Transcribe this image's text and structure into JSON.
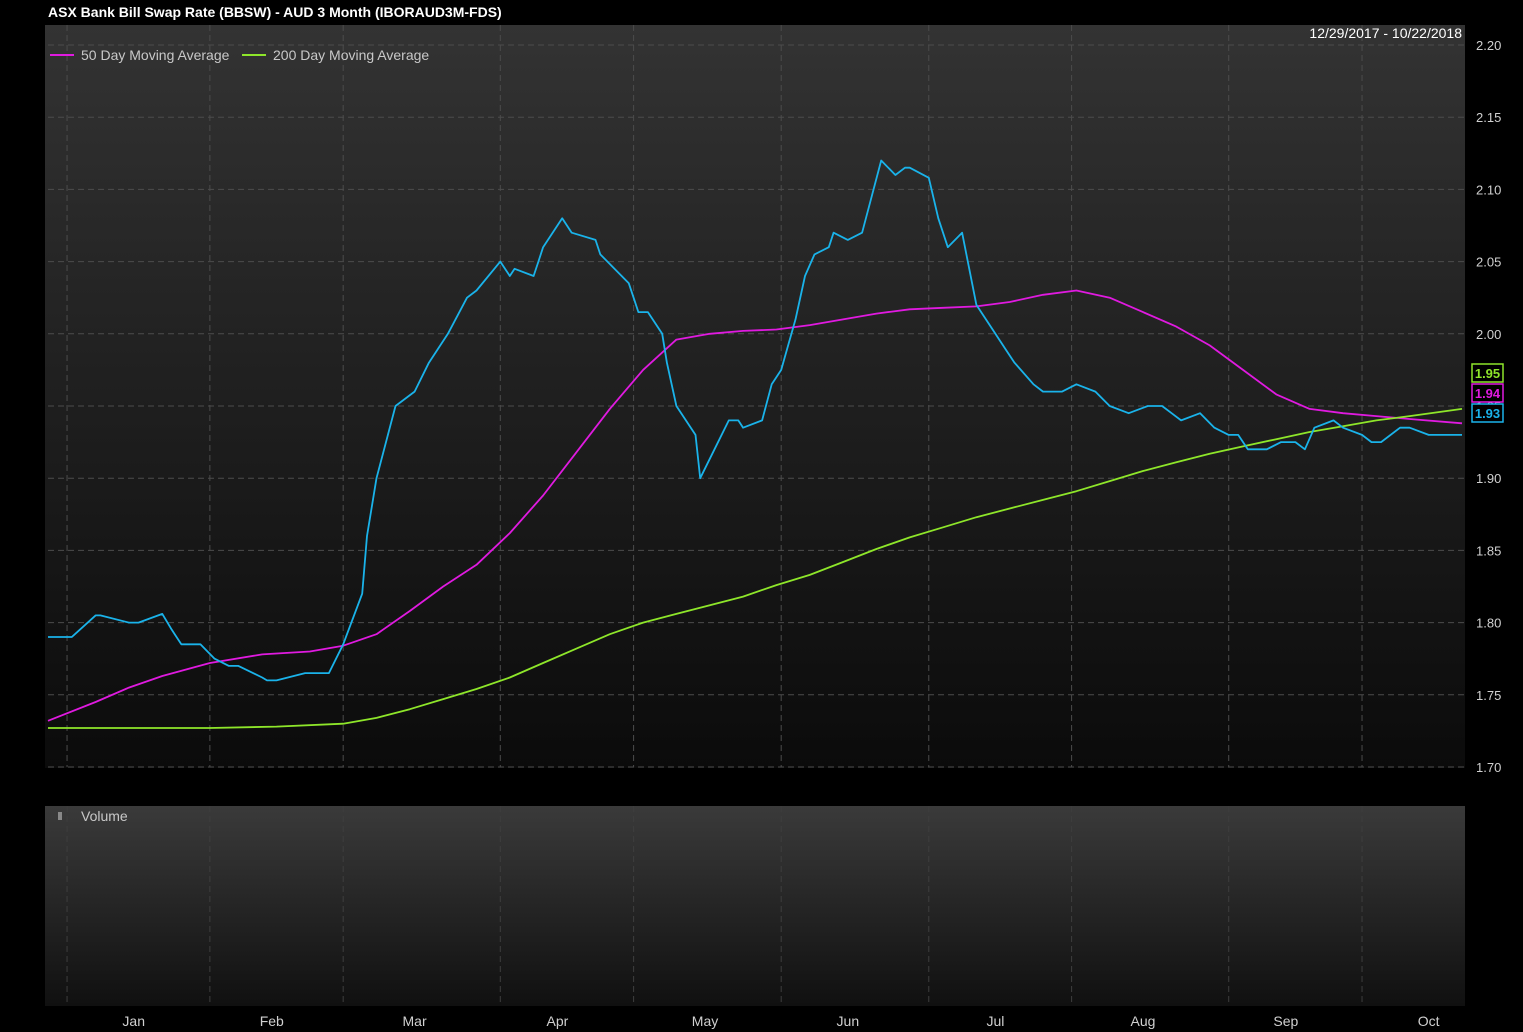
{
  "chart_data": {
    "type": "line",
    "title": "ASX Bank Bill Swap Rate (BBSW) - AUD 3 Month (IBORAUD3M-FDS)",
    "date_range": "12/29/2017 - 10/22/2018",
    "x_labels": [
      "Jan",
      "Feb",
      "Mar",
      "Apr",
      "May",
      "Jun",
      "Jul",
      "Aug",
      "Sep",
      "Oct"
    ],
    "ylim": [
      1.7,
      2.2
    ],
    "y_ticks": [
      "1.70",
      "1.75",
      "1.80",
      "1.85",
      "1.90",
      "1.95",
      "2.00",
      "2.05",
      "2.10",
      "2.15",
      "2.20"
    ],
    "grid": true,
    "legend_position": "top-left",
    "volume_label": "Volume",
    "series": [
      {
        "name": "",
        "color": "#1ab3ea",
        "last_label": "1.93",
        "x": [
          "2017-12-29",
          "2018-01-03",
          "2018-01-08",
          "2018-01-09",
          "2018-01-15",
          "2018-01-17",
          "2018-01-22",
          "2018-01-24",
          "2018-01-26",
          "2018-01-30",
          "2018-02-02",
          "2018-02-05",
          "2018-02-07",
          "2018-02-12",
          "2018-02-13",
          "2018-02-15",
          "2018-02-21",
          "2018-02-22",
          "2018-02-26",
          "2018-03-01",
          "2018-03-05",
          "2018-03-06",
          "2018-03-08",
          "2018-03-12",
          "2018-03-16",
          "2018-03-19",
          "2018-03-23",
          "2018-03-27",
          "2018-03-29",
          "2018-04-03",
          "2018-04-05",
          "2018-04-06",
          "2018-04-10",
          "2018-04-11",
          "2018-04-12",
          "2018-04-16",
          "2018-04-18",
          "2018-04-23",
          "2018-04-24",
          "2018-04-30",
          "2018-05-02",
          "2018-05-04",
          "2018-05-07",
          "2018-05-08",
          "2018-05-10",
          "2018-05-14",
          "2018-05-15",
          "2018-05-18",
          "2018-05-21",
          "2018-05-23",
          "2018-05-24",
          "2018-05-28",
          "2018-05-30",
          "2018-06-01",
          "2018-06-04",
          "2018-06-06",
          "2018-06-08",
          "2018-06-11",
          "2018-06-12",
          "2018-06-15",
          "2018-06-18",
          "2018-06-22",
          "2018-06-25",
          "2018-06-27",
          "2018-06-28",
          "2018-07-02",
          "2018-07-04",
          "2018-07-06",
          "2018-07-09",
          "2018-07-12",
          "2018-07-16",
          "2018-07-18",
          "2018-07-20",
          "2018-07-24",
          "2018-07-26",
          "2018-07-30",
          "2018-08-02",
          "2018-08-06",
          "2018-08-09",
          "2018-08-13",
          "2018-08-17",
          "2018-08-20",
          "2018-08-22",
          "2018-08-24",
          "2018-08-28",
          "2018-08-31",
          "2018-09-03",
          "2018-09-05",
          "2018-09-07",
          "2018-09-11",
          "2018-09-14",
          "2018-09-17",
          "2018-09-19",
          "2018-09-21",
          "2018-09-25",
          "2018-09-27",
          "2018-10-01",
          "2018-10-03",
          "2018-10-05",
          "2018-10-09",
          "2018-10-11",
          "2018-10-15",
          "2018-10-18",
          "2018-10-22"
        ],
        "values": [
          1.79,
          1.79,
          1.805,
          1.805,
          1.8,
          1.8,
          1.806,
          1.795,
          1.785,
          1.785,
          1.775,
          1.77,
          1.77,
          1.762,
          1.76,
          1.76,
          1.765,
          1.765,
          1.765,
          1.785,
          1.82,
          1.86,
          1.9,
          1.95,
          1.96,
          1.98,
          2.0,
          2.025,
          2.03,
          2.05,
          2.04,
          2.045,
          2.04,
          2.05,
          2.06,
          2.08,
          2.07,
          2.065,
          2.055,
          2.035,
          2.015,
          2.015,
          2.0,
          1.98,
          1.95,
          1.93,
          1.9,
          1.92,
          1.94,
          1.94,
          1.935,
          1.94,
          1.965,
          1.975,
          2.01,
          2.04,
          2.055,
          2.06,
          2.07,
          2.065,
          2.07,
          2.12,
          2.11,
          2.115,
          2.115,
          2.108,
          2.08,
          2.06,
          2.07,
          2.02,
          2.0,
          1.99,
          1.98,
          1.965,
          1.96,
          1.96,
          1.965,
          1.96,
          1.95,
          1.945,
          1.95,
          1.95,
          1.945,
          1.94,
          1.945,
          1.935,
          1.93,
          1.93,
          1.92,
          1.92,
          1.925,
          1.925,
          1.92,
          1.935,
          1.94,
          1.935,
          1.93,
          1.925,
          1.925,
          1.935,
          1.935,
          1.93,
          1.93,
          1.93
        ]
      },
      {
        "name": "50 Day Moving Average",
        "color": "#e01ae0",
        "last_label": "1.94",
        "x": [
          "2017-12-29",
          "2018-01-08",
          "2018-01-15",
          "2018-01-22",
          "2018-02-01",
          "2018-02-12",
          "2018-02-22",
          "2018-03-01",
          "2018-03-08",
          "2018-03-15",
          "2018-03-22",
          "2018-03-29",
          "2018-04-05",
          "2018-04-12",
          "2018-04-19",
          "2018-04-26",
          "2018-05-03",
          "2018-05-10",
          "2018-05-17",
          "2018-05-24",
          "2018-05-31",
          "2018-06-07",
          "2018-06-14",
          "2018-06-21",
          "2018-06-28",
          "2018-07-05",
          "2018-07-12",
          "2018-07-19",
          "2018-07-26",
          "2018-08-02",
          "2018-08-09",
          "2018-08-16",
          "2018-08-23",
          "2018-08-30",
          "2018-09-06",
          "2018-09-13",
          "2018-09-20",
          "2018-09-27",
          "2018-10-04",
          "2018-10-11",
          "2018-10-22"
        ],
        "values": [
          1.732,
          1.745,
          1.755,
          1.763,
          1.772,
          1.778,
          1.78,
          1.784,
          1.792,
          1.808,
          1.825,
          1.84,
          1.862,
          1.888,
          1.918,
          1.948,
          1.975,
          1.996,
          2.0,
          2.002,
          2.003,
          2.006,
          2.01,
          2.014,
          2.017,
          2.018,
          2.019,
          2.022,
          2.027,
          2.03,
          2.025,
          2.015,
          2.005,
          1.992,
          1.975,
          1.958,
          1.948,
          1.945,
          1.943,
          1.941,
          1.938
        ]
      },
      {
        "name": "200 Day Moving Average",
        "color": "#8ee62a",
        "last_label": "1.95",
        "x": [
          "2017-12-29",
          "2018-01-15",
          "2018-02-01",
          "2018-02-15",
          "2018-03-01",
          "2018-03-08",
          "2018-03-15",
          "2018-03-22",
          "2018-03-29",
          "2018-04-05",
          "2018-04-12",
          "2018-04-19",
          "2018-04-26",
          "2018-05-03",
          "2018-05-10",
          "2018-05-17",
          "2018-05-24",
          "2018-05-31",
          "2018-06-07",
          "2018-06-14",
          "2018-06-21",
          "2018-06-28",
          "2018-07-05",
          "2018-07-12",
          "2018-07-19",
          "2018-07-26",
          "2018-08-02",
          "2018-08-09",
          "2018-08-16",
          "2018-08-23",
          "2018-08-30",
          "2018-09-06",
          "2018-09-13",
          "2018-09-20",
          "2018-09-27",
          "2018-10-04",
          "2018-10-11",
          "2018-10-22"
        ],
        "values": [
          1.727,
          1.727,
          1.727,
          1.728,
          1.73,
          1.734,
          1.74,
          1.747,
          1.754,
          1.762,
          1.772,
          1.782,
          1.792,
          1.8,
          1.806,
          1.812,
          1.818,
          1.826,
          1.833,
          1.842,
          1.851,
          1.859,
          1.866,
          1.873,
          1.879,
          1.885,
          1.891,
          1.898,
          1.905,
          1.911,
          1.917,
          1.922,
          1.927,
          1.932,
          1.936,
          1.94,
          1.943,
          1.948
        ]
      }
    ]
  }
}
